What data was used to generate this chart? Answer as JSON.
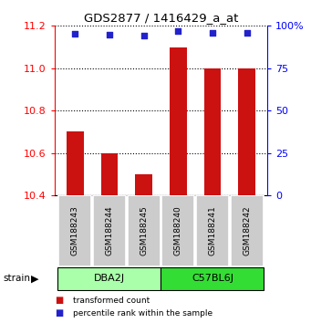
{
  "title": "GDS2877 / 1416429_a_at",
  "samples": [
    "GSM188243",
    "GSM188244",
    "GSM188245",
    "GSM188240",
    "GSM188241",
    "GSM188242"
  ],
  "bar_values": [
    10.7,
    10.6,
    10.5,
    11.1,
    11.0,
    11.0
  ],
  "percentile_values": [
    95.5,
    95.0,
    94.5,
    97.0,
    96.0,
    96.0
  ],
  "y_min": 10.4,
  "y_max": 11.2,
  "y_ticks": [
    10.4,
    10.6,
    10.8,
    11.0,
    11.2
  ],
  "right_y_ticks": [
    0,
    25,
    50,
    75,
    100
  ],
  "bar_color": "#cc1111",
  "dot_color": "#2222cc",
  "strains": [
    {
      "name": "DBA2J",
      "indices": [
        0,
        1,
        2
      ],
      "color": "#aaffaa"
    },
    {
      "name": "C57BL6J",
      "indices": [
        3,
        4,
        5
      ],
      "color": "#33dd33"
    }
  ],
  "strain_label": "strain",
  "legend_items": [
    {
      "color": "#cc1111",
      "label": "transformed count"
    },
    {
      "color": "#2222cc",
      "label": "percentile rank within the sample"
    }
  ],
  "background_color": "#ffffff",
  "sample_box_color": "#cccccc"
}
